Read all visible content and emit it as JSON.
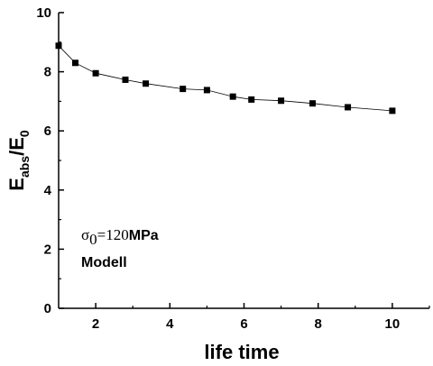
{
  "chart_data": {
    "type": "line",
    "xlabel": "life time",
    "ylabel": {
      "main": "E",
      "sub1": "abs",
      "sep": "/E",
      "sub2": "0"
    },
    "xlim": [
      1,
      11
    ],
    "ylim": [
      0,
      10
    ],
    "x_ticks": [
      "2",
      "4",
      "6",
      "8",
      "10"
    ],
    "y_ticks": [
      "0",
      "2",
      "4",
      "6",
      "8",
      "10"
    ],
    "x_tick_values": [
      2,
      4,
      6,
      8,
      10
    ],
    "y_tick_values": [
      0,
      2,
      4,
      6,
      8,
      10
    ],
    "grid": false,
    "series": [
      {
        "marker": "square",
        "color": "#000000",
        "x": [
          1.0,
          1.45,
          2.0,
          2.8,
          3.35,
          4.35,
          5.0,
          5.7,
          6.2,
          7.0,
          7.85,
          8.8,
          10.0
        ],
        "y": [
          8.88,
          8.3,
          7.95,
          7.73,
          7.6,
          7.42,
          7.38,
          7.16,
          7.06,
          7.02,
          6.93,
          6.8,
          6.68
        ]
      }
    ],
    "annotations": {
      "sigma": "σ",
      "sigma_sub": "0",
      "sigma_value": "=120",
      "sigma_unit": "MPa",
      "model": "Modell"
    }
  }
}
